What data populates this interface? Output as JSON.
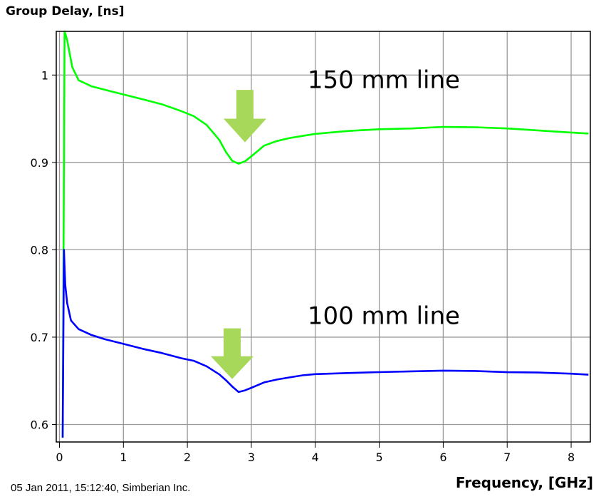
{
  "chart_data": {
    "type": "line",
    "title": "",
    "ylabel": "Group Delay, [ns]",
    "xlabel": "Frequency, [GHz]",
    "xlim": [
      -0.05,
      8.3
    ],
    "ylim": [
      0.58,
      1.05
    ],
    "xticks": [
      0,
      1,
      2,
      3,
      4,
      5,
      6,
      7,
      8
    ],
    "yticks": [
      0.6,
      0.7,
      0.8,
      0.9,
      1.0
    ],
    "xtick_labels": [
      "0",
      "1",
      "2",
      "3",
      "4",
      "5",
      "6",
      "7",
      "8"
    ],
    "ytick_labels": [
      "0.6",
      "0.7",
      "0.8",
      "0.9",
      "1"
    ],
    "grid": true,
    "series": [
      {
        "name": "150 mm line",
        "color": "#00ff00",
        "x": [
          0.05,
          0.08,
          0.12,
          0.2,
          0.3,
          0.5,
          0.8,
          1.0,
          1.3,
          1.6,
          1.9,
          2.1,
          2.3,
          2.5,
          2.6,
          2.7,
          2.8,
          2.9,
          3.0,
          3.1,
          3.2,
          3.4,
          3.6,
          3.8,
          4.0,
          4.5,
          5.0,
          5.5,
          6.0,
          6.5,
          7.0,
          7.5,
          8.0,
          8.27
        ],
        "y": [
          0.585,
          1.05,
          1.04,
          1.01,
          0.995,
          0.988,
          0.982,
          0.978,
          0.972,
          0.966,
          0.958,
          0.952,
          0.942,
          0.925,
          0.912,
          0.902,
          0.899,
          0.902,
          0.908,
          0.914,
          0.92,
          0.925,
          0.928,
          0.93,
          0.932,
          0.935,
          0.937,
          0.938,
          0.94,
          0.94,
          0.939,
          0.937,
          0.935,
          0.934
        ]
      },
      {
        "name": "100 mm line",
        "color": "#0000ff",
        "x": [
          0.05,
          0.07,
          0.09,
          0.12,
          0.18,
          0.3,
          0.5,
          0.7,
          1.0,
          1.3,
          1.6,
          1.9,
          2.1,
          2.3,
          2.5,
          2.6,
          2.7,
          2.8,
          2.9,
          3.0,
          3.2,
          3.4,
          3.6,
          3.8,
          4.0,
          4.5,
          5.0,
          5.5,
          6.0,
          6.5,
          7.0,
          7.5,
          8.0,
          8.27
        ],
        "y": [
          0.585,
          0.8,
          0.76,
          0.74,
          0.72,
          0.71,
          0.703,
          0.698,
          0.692,
          0.686,
          0.681,
          0.675,
          0.672,
          0.666,
          0.657,
          0.651,
          0.644,
          0.638,
          0.64,
          0.643,
          0.649,
          0.652,
          0.654,
          0.656,
          0.657,
          0.658,
          0.659,
          0.66,
          0.661,
          0.661,
          0.66,
          0.66,
          0.659,
          0.658
        ]
      }
    ],
    "annotations": [
      {
        "text": "150 mm line",
        "x": 5.07,
        "y": 0.985
      },
      {
        "text": "100 mm line",
        "x": 5.07,
        "y": 0.715
      }
    ],
    "arrows": [
      {
        "x": 2.9,
        "y_top": 0.983,
        "y_tip": 0.923,
        "color": "#a8d85a"
      },
      {
        "x": 2.7,
        "y_top": 0.71,
        "y_tip": 0.652,
        "color": "#a8d85a"
      }
    ]
  },
  "footer": "05 Jan 2011, 15:12:40, Simberian Inc."
}
